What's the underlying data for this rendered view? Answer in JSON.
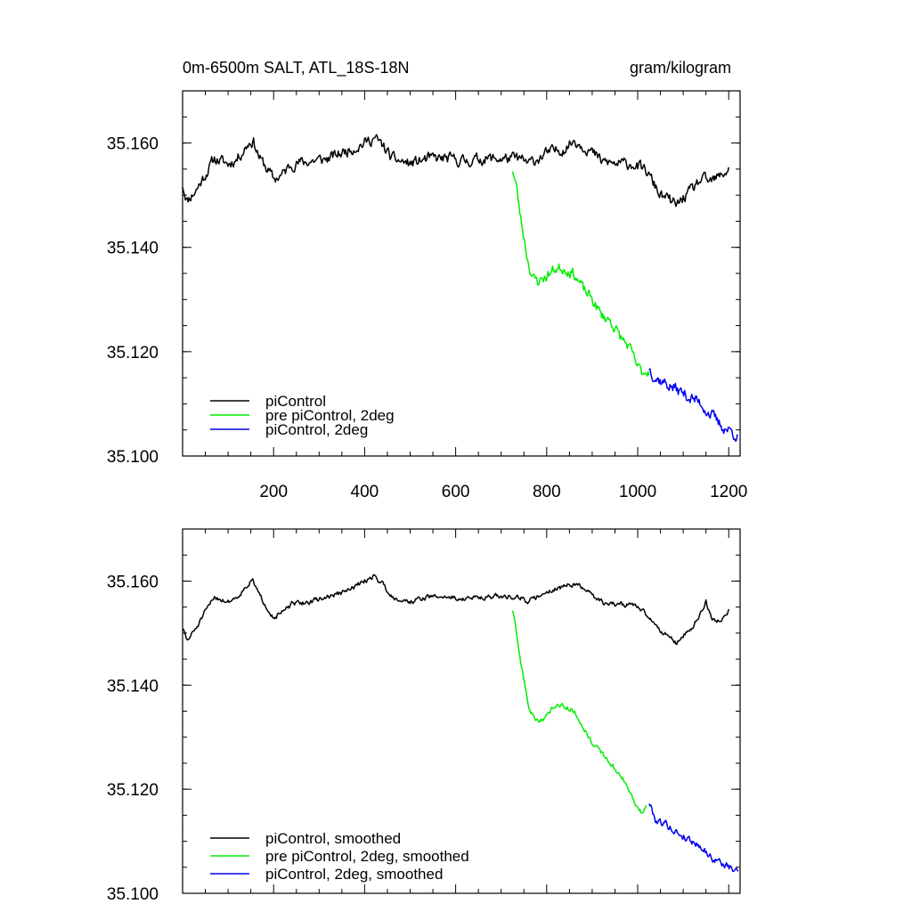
{
  "chart_data": [
    {
      "type": "line",
      "title_left": "0m-6500m SALT, ATL_18S-18N",
      "title_right": "gram/kilogram",
      "xlim": [
        0,
        1225
      ],
      "ylim": [
        35.1,
        35.17
      ],
      "x_ticks": [
        200,
        400,
        600,
        800,
        1000,
        1200
      ],
      "x_tick_labels": [
        "200",
        "400",
        "600",
        "800",
        "1000",
        "1200"
      ],
      "y_ticks": [
        35.1,
        35.12,
        35.14,
        35.16
      ],
      "y_tick_labels": [
        "35.100",
        "35.120",
        "35.140",
        "35.160"
      ],
      "grid": false,
      "legend_position": "bottom-left",
      "series": [
        {
          "name": "piControl",
          "color": "#000000",
          "noise": 0.0009,
          "seed": 11,
          "points": [
            [
              0,
              35.152
            ],
            [
              10,
              35.149
            ],
            [
              30,
              35.151
            ],
            [
              50,
              35.154
            ],
            [
              70,
              35.157
            ],
            [
              100,
              35.156
            ],
            [
              120,
              35.157
            ],
            [
              145,
              35.16
            ],
            [
              155,
              35.1605
            ],
            [
              170,
              35.157
            ],
            [
              190,
              35.1545
            ],
            [
              200,
              35.153
            ],
            [
              220,
              35.154
            ],
            [
              240,
              35.156
            ],
            [
              280,
              35.1565
            ],
            [
              320,
              35.157
            ],
            [
              360,
              35.1585
            ],
            [
              400,
              35.16
            ],
            [
              420,
              35.161
            ],
            [
              440,
              35.1595
            ],
            [
              460,
              35.157
            ],
            [
              500,
              35.156
            ],
            [
              540,
              35.157
            ],
            [
              580,
              35.157
            ],
            [
              620,
              35.1565
            ],
            [
              660,
              35.157
            ],
            [
              700,
              35.157
            ],
            [
              740,
              35.157
            ],
            [
              760,
              35.156
            ],
            [
              800,
              35.158
            ],
            [
              840,
              35.159
            ],
            [
              860,
              35.1605
            ],
            [
              890,
              35.159
            ],
            [
              920,
              35.1565
            ],
            [
              950,
              35.156
            ],
            [
              990,
              35.156
            ],
            [
              1020,
              35.1545
            ],
            [
              1050,
              35.15
            ],
            [
              1070,
              35.149
            ],
            [
              1085,
              35.148
            ],
            [
              1100,
              35.1495
            ],
            [
              1120,
              35.151
            ],
            [
              1140,
              35.153
            ],
            [
              1160,
              35.1525
            ],
            [
              1180,
              35.1535
            ],
            [
              1200,
              35.155
            ]
          ]
        },
        {
          "name": "pre piControl, 2deg",
          "color": "#00ee00",
          "noise": 0.0009,
          "seed": 23,
          "points": [
            [
              725,
              35.155
            ],
            [
              733,
              35.152
            ],
            [
              742,
              35.146
            ],
            [
              750,
              35.142
            ],
            [
              760,
              35.137
            ],
            [
              770,
              35.134
            ],
            [
              780,
              35.1335
            ],
            [
              800,
              35.1345
            ],
            [
              820,
              35.136
            ],
            [
              840,
              35.136
            ],
            [
              860,
              35.135
            ],
            [
              880,
              35.132
            ],
            [
              900,
              35.13
            ],
            [
              920,
              35.127
            ],
            [
              940,
              35.126
            ],
            [
              960,
              35.123
            ],
            [
              980,
              35.121
            ],
            [
              1000,
              35.117
            ],
            [
              1010,
              35.116
            ],
            [
              1025,
              35.1165
            ]
          ]
        },
        {
          "name": "piControl, 2deg",
          "color": "#0000ee",
          "noise": 0.001,
          "seed": 37,
          "points": [
            [
              1025,
              35.117
            ],
            [
              1040,
              35.115
            ],
            [
              1060,
              35.114
            ],
            [
              1080,
              35.113
            ],
            [
              1100,
              35.112
            ],
            [
              1120,
              35.111
            ],
            [
              1140,
              35.11
            ],
            [
              1160,
              35.108
            ],
            [
              1180,
              35.106
            ],
            [
              1200,
              35.105
            ],
            [
              1220,
              35.104
            ]
          ]
        }
      ]
    },
    {
      "type": "line",
      "xlim": [
        0,
        1225
      ],
      "ylim": [
        35.1,
        35.17
      ],
      "y_ticks": [
        35.1,
        35.12,
        35.14,
        35.16
      ],
      "y_tick_labels": [
        "35.100",
        "35.120",
        "35.140",
        "35.160"
      ],
      "grid": false,
      "legend_position": "bottom-left",
      "series": [
        {
          "name": "piControl, smoothed",
          "color": "#000000",
          "noise": 0.0004,
          "seed": 51,
          "points": [
            [
              0,
              35.151
            ],
            [
              10,
              35.1485
            ],
            [
              30,
              35.151
            ],
            [
              50,
              35.154
            ],
            [
              70,
              35.157
            ],
            [
              100,
              35.156
            ],
            [
              120,
              35.157
            ],
            [
              145,
              35.1595
            ],
            [
              155,
              35.16
            ],
            [
              170,
              35.157
            ],
            [
              190,
              35.1545
            ],
            [
              200,
              35.153
            ],
            [
              220,
              35.154
            ],
            [
              240,
              35.1555
            ],
            [
              280,
              35.156
            ],
            [
              320,
              35.157
            ],
            [
              360,
              35.158
            ],
            [
              400,
              35.16
            ],
            [
              420,
              35.161
            ],
            [
              440,
              35.1595
            ],
            [
              460,
              35.157
            ],
            [
              500,
              35.156
            ],
            [
              540,
              35.157
            ],
            [
              580,
              35.157
            ],
            [
              620,
              35.1565
            ],
            [
              660,
              35.157
            ],
            [
              700,
              35.157
            ],
            [
              740,
              35.157
            ],
            [
              760,
              35.156
            ],
            [
              800,
              35.158
            ],
            [
              840,
              35.159
            ],
            [
              860,
              35.1595
            ],
            [
              890,
              35.158
            ],
            [
              920,
              35.156
            ],
            [
              950,
              35.1555
            ],
            [
              990,
              35.1555
            ],
            [
              1020,
              35.1535
            ],
            [
              1050,
              35.1505
            ],
            [
              1070,
              35.1495
            ],
            [
              1085,
              35.148
            ],
            [
              1100,
              35.1495
            ],
            [
              1120,
              35.151
            ],
            [
              1140,
              35.154
            ],
            [
              1150,
              35.156
            ],
            [
              1165,
              35.1525
            ],
            [
              1185,
              35.1525
            ],
            [
              1200,
              35.1545
            ]
          ]
        },
        {
          "name": "pre piControl, 2deg, smoothed",
          "color": "#00ee00",
          "noise": 0.0004,
          "seed": 63,
          "points": [
            [
              725,
              35.1545
            ],
            [
              733,
              35.15
            ],
            [
              742,
              35.145
            ],
            [
              750,
              35.141
            ],
            [
              760,
              35.136
            ],
            [
              770,
              35.134
            ],
            [
              780,
              35.133
            ],
            [
              800,
              35.134
            ],
            [
              820,
              35.1365
            ],
            [
              840,
              35.136
            ],
            [
              860,
              35.135
            ],
            [
              880,
              35.132
            ],
            [
              900,
              35.129
            ],
            [
              920,
              35.127
            ],
            [
              940,
              35.125
            ],
            [
              960,
              35.123
            ],
            [
              980,
              35.12
            ],
            [
              1000,
              35.116
            ],
            [
              1010,
              35.1155
            ],
            [
              1020,
              35.117
            ]
          ]
        },
        {
          "name": "piControl, 2deg, smoothed",
          "color": "#0000ee",
          "noise": 0.0006,
          "seed": 79,
          "points": [
            [
              1025,
              35.1175
            ],
            [
              1040,
              35.114
            ],
            [
              1060,
              35.1135
            ],
            [
              1080,
              35.112
            ],
            [
              1100,
              35.111
            ],
            [
              1120,
              35.11
            ],
            [
              1140,
              35.109
            ],
            [
              1160,
              35.107
            ],
            [
              1180,
              35.106
            ],
            [
              1200,
              35.105
            ],
            [
              1222,
              35.104
            ]
          ]
        }
      ]
    }
  ]
}
